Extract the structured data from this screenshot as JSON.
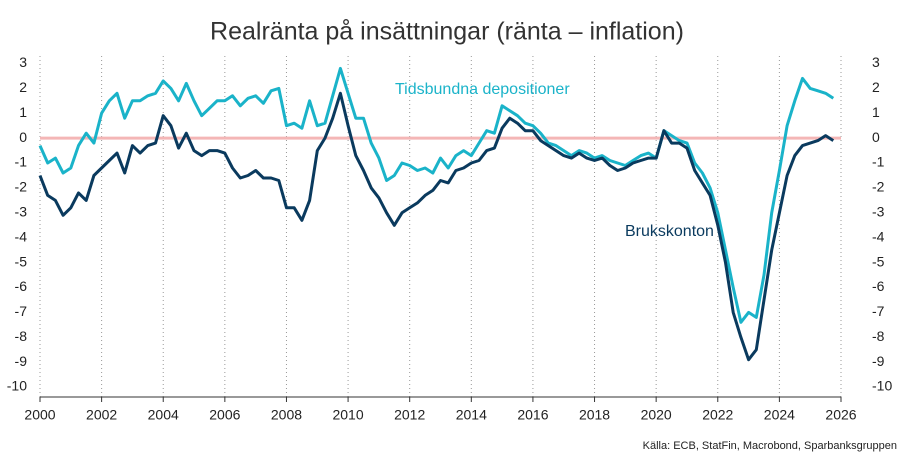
{
  "chart_data": {
    "type": "line",
    "title": "Realränta på insättningar (ränta – inflation)",
    "source": "Källa: ECB, StatFin, Macrobond, Sparbanksgruppen",
    "annotations": [
      "Tidsbundna depositioner",
      "Brukskonton"
    ],
    "x": [
      2000,
      2000.25,
      2000.5,
      2000.75,
      2001,
      2001.25,
      2001.5,
      2001.75,
      2002,
      2002.25,
      2002.5,
      2002.75,
      2003,
      2003.25,
      2003.5,
      2003.75,
      2004,
      2004.25,
      2004.5,
      2004.75,
      2005,
      2005.25,
      2005.5,
      2005.75,
      2006,
      2006.25,
      2006.5,
      2006.75,
      2007,
      2007.25,
      2007.5,
      2007.75,
      2008,
      2008.25,
      2008.5,
      2008.75,
      2009,
      2009.25,
      2009.5,
      2009.75,
      2010,
      2010.25,
      2010.5,
      2010.75,
      2011,
      2011.25,
      2011.5,
      2011.75,
      2012,
      2012.25,
      2012.5,
      2012.75,
      2013,
      2013.25,
      2013.5,
      2013.75,
      2014,
      2014.25,
      2014.5,
      2014.75,
      2015,
      2015.25,
      2015.5,
      2015.75,
      2016,
      2016.25,
      2016.5,
      2016.75,
      2017,
      2017.25,
      2017.5,
      2017.75,
      2018,
      2018.25,
      2018.5,
      2018.75,
      2019,
      2019.25,
      2019.5,
      2019.75,
      2020,
      2020.25,
      2020.5,
      2020.75,
      2021,
      2021.25,
      2021.5,
      2021.75,
      2022,
      2022.25,
      2022.5,
      2022.75,
      2023,
      2023.25,
      2023.5,
      2023.75,
      2024,
      2024.25,
      2024.5,
      2024.75,
      2025,
      2025.25,
      2025.5,
      2025.75
    ],
    "series": [
      {
        "name": "Tidsbundna depositioner",
        "color": "#1ab3c9",
        "values": [
          -0.3,
          -1.0,
          -0.8,
          -1.4,
          -1.2,
          -0.3,
          0.2,
          -0.2,
          1.0,
          1.5,
          1.8,
          0.8,
          1.5,
          1.5,
          1.7,
          1.8,
          2.3,
          2.0,
          1.5,
          2.2,
          1.5,
          0.9,
          1.2,
          1.5,
          1.5,
          1.7,
          1.3,
          1.6,
          1.7,
          1.4,
          1.9,
          2.0,
          0.5,
          0.6,
          0.4,
          1.5,
          0.5,
          0.6,
          1.7,
          2.8,
          1.8,
          0.8,
          0.8,
          -0.2,
          -0.8,
          -1.7,
          -1.5,
          -1.0,
          -1.1,
          -1.3,
          -1.2,
          -1.4,
          -0.8,
          -1.2,
          -0.7,
          -0.5,
          -0.7,
          -0.2,
          0.3,
          0.2,
          1.3,
          1.1,
          0.9,
          0.6,
          0.5,
          0.2,
          -0.2,
          -0.3,
          -0.5,
          -0.7,
          -0.5,
          -0.6,
          -0.8,
          -0.7,
          -0.9,
          -1.0,
          -1.1,
          -0.9,
          -0.7,
          -0.6,
          -0.8,
          0.3,
          0.1,
          -0.1,
          -0.2,
          -1.0,
          -1.4,
          -2.0,
          -3.0,
          -4.5,
          -6.0,
          -7.4,
          -7.0,
          -7.2,
          -5.5,
          -3.0,
          -1.3,
          0.5,
          1.5,
          2.4,
          2.0,
          1.9,
          1.8,
          1.6
        ]
      },
      {
        "name": "Brukskonton",
        "color": "#0a3a5e",
        "values": [
          -1.5,
          -2.3,
          -2.5,
          -3.1,
          -2.8,
          -2.2,
          -2.5,
          -1.5,
          -1.2,
          -0.9,
          -0.6,
          -1.4,
          -0.3,
          -0.6,
          -0.3,
          -0.2,
          0.9,
          0.5,
          -0.4,
          0.2,
          -0.5,
          -0.7,
          -0.5,
          -0.5,
          -0.6,
          -1.2,
          -1.6,
          -1.5,
          -1.3,
          -1.6,
          -1.6,
          -1.7,
          -2.8,
          -2.8,
          -3.3,
          -2.5,
          -0.5,
          0.0,
          0.8,
          1.8,
          0.5,
          -0.7,
          -1.3,
          -2.0,
          -2.4,
          -3.0,
          -3.5,
          -3.0,
          -2.8,
          -2.6,
          -2.3,
          -2.1,
          -1.7,
          -1.8,
          -1.3,
          -1.2,
          -1.0,
          -0.9,
          -0.5,
          -0.4,
          0.4,
          0.8,
          0.6,
          0.3,
          0.3,
          -0.1,
          -0.3,
          -0.5,
          -0.7,
          -0.8,
          -0.6,
          -0.8,
          -0.9,
          -0.8,
          -1.1,
          -1.3,
          -1.2,
          -1.0,
          -0.9,
          -0.8,
          -0.8,
          0.3,
          -0.2,
          -0.2,
          -0.4,
          -1.3,
          -1.8,
          -2.3,
          -3.5,
          -5.0,
          -7.0,
          -8.0,
          -8.9,
          -8.5,
          -6.5,
          -4.5,
          -3.0,
          -1.5,
          -0.7,
          -0.3,
          -0.2,
          -0.1,
          0.1,
          -0.1
        ]
      }
    ],
    "xlim": [
      2000,
      2026
    ],
    "xticks": [
      2000,
      2002,
      2004,
      2006,
      2008,
      2010,
      2012,
      2014,
      2016,
      2018,
      2020,
      2022,
      2024,
      2026
    ],
    "ylim": [
      -10.4,
      3.3
    ],
    "yticks": [
      3,
      2,
      1,
      0,
      -1,
      -2,
      -3,
      -4,
      -5,
      -6,
      -7,
      -8,
      -9,
      -10
    ],
    "reference_line": 0,
    "reference_color": "#f4b6b6",
    "grid": "x-dotted"
  }
}
